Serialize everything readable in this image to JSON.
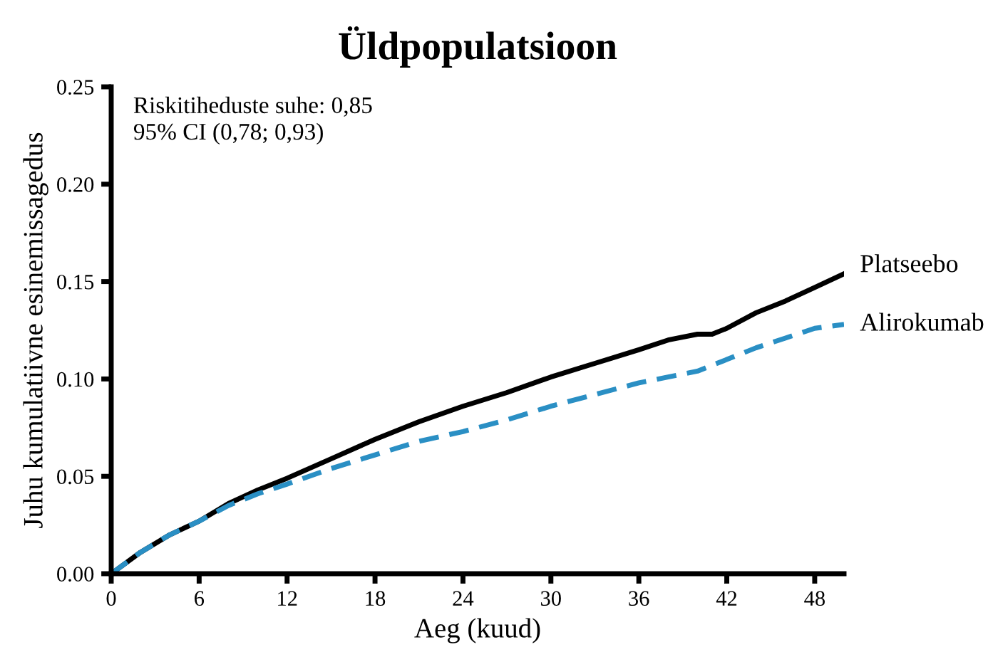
{
  "chart_data": {
    "type": "line",
    "title": "Üldpopulatsioon",
    "xlabel": "Aeg (kuud)",
    "ylabel": "Juhu kumulatiivne esinemissagedus",
    "annotations": [
      "Riskitiheduste suhe: 0,85\n95% CI (0,78; 0,93)"
    ],
    "xlim": [
      0,
      50
    ],
    "xticks": [
      0,
      6,
      12,
      18,
      24,
      30,
      36,
      42,
      48
    ],
    "ylim": [
      0,
      0.25
    ],
    "yticks": [
      {
        "value": 0,
        "label": "0.00"
      },
      {
        "value": 0.05,
        "label": "0.05"
      },
      {
        "value": 0.1,
        "label": "0.10"
      },
      {
        "value": 0.15,
        "label": "0.15"
      },
      {
        "value": 0.2,
        "label": "0.20"
      },
      {
        "value": 0.25,
        "label": "0.25"
      }
    ],
    "grid": false,
    "legend": false,
    "series": [
      {
        "name": "Platseebo",
        "color": "#000000",
        "line_style": "solid",
        "x": [
          0,
          2,
          4,
          6,
          8,
          10,
          12,
          15,
          18,
          21,
          24,
          27,
          30,
          33,
          36,
          38,
          40,
          41,
          42,
          44,
          46,
          48,
          50
        ],
        "values": [
          0,
          0.011,
          0.02,
          0.027,
          0.036,
          0.043,
          0.049,
          0.059,
          0.069,
          0.078,
          0.086,
          0.093,
          0.101,
          0.108,
          0.115,
          0.12,
          0.123,
          0.123,
          0.126,
          0.134,
          0.14,
          0.147,
          0.154
        ]
      },
      {
        "name": "Alirokumab",
        "color": "#2a8fc4",
        "line_style": "dashed",
        "x": [
          0,
          2,
          4,
          6,
          8,
          10,
          12,
          15,
          18,
          21,
          24,
          27,
          30,
          33,
          36,
          38,
          40,
          42,
          44,
          46,
          48,
          50
        ],
        "values": [
          0,
          0.011,
          0.02,
          0.027,
          0.035,
          0.041,
          0.046,
          0.054,
          0.061,
          0.068,
          0.073,
          0.079,
          0.086,
          0.092,
          0.098,
          0.101,
          0.104,
          0.11,
          0.116,
          0.121,
          0.126,
          0.128
        ]
      }
    ]
  }
}
